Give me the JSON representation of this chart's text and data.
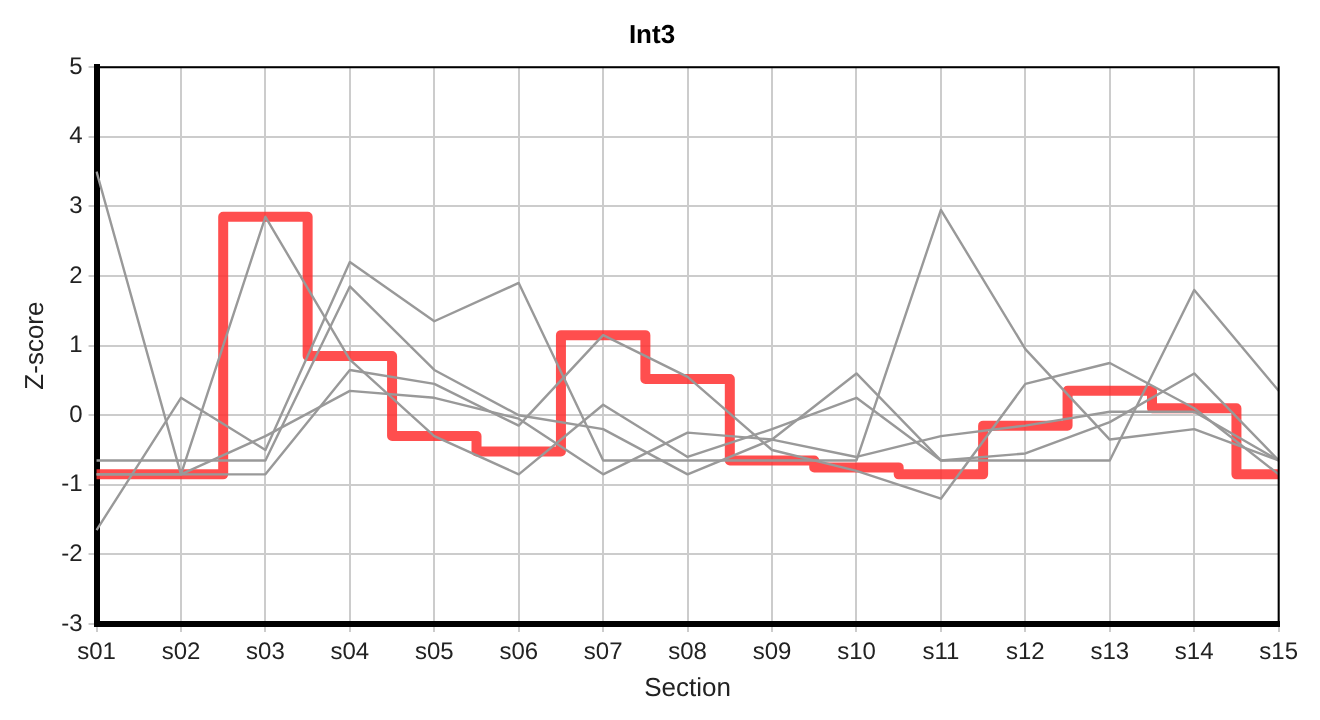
{
  "chart_data": {
    "type": "line",
    "title": "Int3",
    "xlabel": "Section",
    "ylabel": "Z-score",
    "categories": [
      "s01",
      "s02",
      "s03",
      "s04",
      "s05",
      "s06",
      "s07",
      "s08",
      "s09",
      "s10",
      "s11",
      "s12",
      "s13",
      "s14",
      "s15"
    ],
    "ylim": [
      -3,
      5
    ],
    "yticks": [
      -3,
      -2,
      -1,
      0,
      1,
      2,
      3,
      4,
      5
    ],
    "grid": true,
    "legend": false,
    "marker": "none",
    "series": [
      {
        "type": "line",
        "color": "#999999",
        "values": [
          3.5,
          -0.85,
          2.85,
          0.8,
          -0.3,
          -0.85,
          0.15,
          -0.6,
          -0.2,
          0.25,
          -0.65,
          -0.55,
          -0.1,
          0.6,
          -0.65
        ]
      },
      {
        "type": "line",
        "color": "#999999",
        "values": [
          -1.65,
          0.25,
          -0.5,
          2.2,
          1.35,
          1.9,
          -0.65,
          -0.65,
          -0.65,
          -0.65,
          2.95,
          0.95,
          -0.35,
          -0.2,
          -0.65
        ]
      },
      {
        "type": "line",
        "color": "#999999",
        "values": [
          -0.65,
          -0.65,
          -0.65,
          1.85,
          0.65,
          0,
          -0.2,
          -0.85,
          -0.35,
          0.6,
          -0.65,
          -0.65,
          -0.65,
          1.8,
          0.35
        ]
      },
      {
        "type": "line",
        "color": "#999999",
        "values": [
          -0.85,
          -0.85,
          -0.85,
          0.65,
          0.45,
          -0.15,
          1.15,
          0.55,
          -0.5,
          -0.8,
          -1.2,
          0.45,
          0.75,
          0.1,
          -0.85
        ]
      },
      {
        "type": "line",
        "color": "#999999",
        "values": [
          -0.85,
          -0.85,
          -0.3,
          0.35,
          0.25,
          -0.05,
          -0.85,
          -0.25,
          -0.35,
          -0.6,
          -0.3,
          -0.15,
          0.05,
          0.05,
          -0.65
        ]
      },
      {
        "type": "step",
        "color": "#ff3333",
        "values": [
          -0.85,
          -0.85,
          2.85,
          0.85,
          -0.3,
          -0.52,
          1.15,
          0.52,
          -0.65,
          -0.75,
          -0.85,
          -0.15,
          0.35,
          0.1,
          -0.85
        ]
      }
    ]
  }
}
